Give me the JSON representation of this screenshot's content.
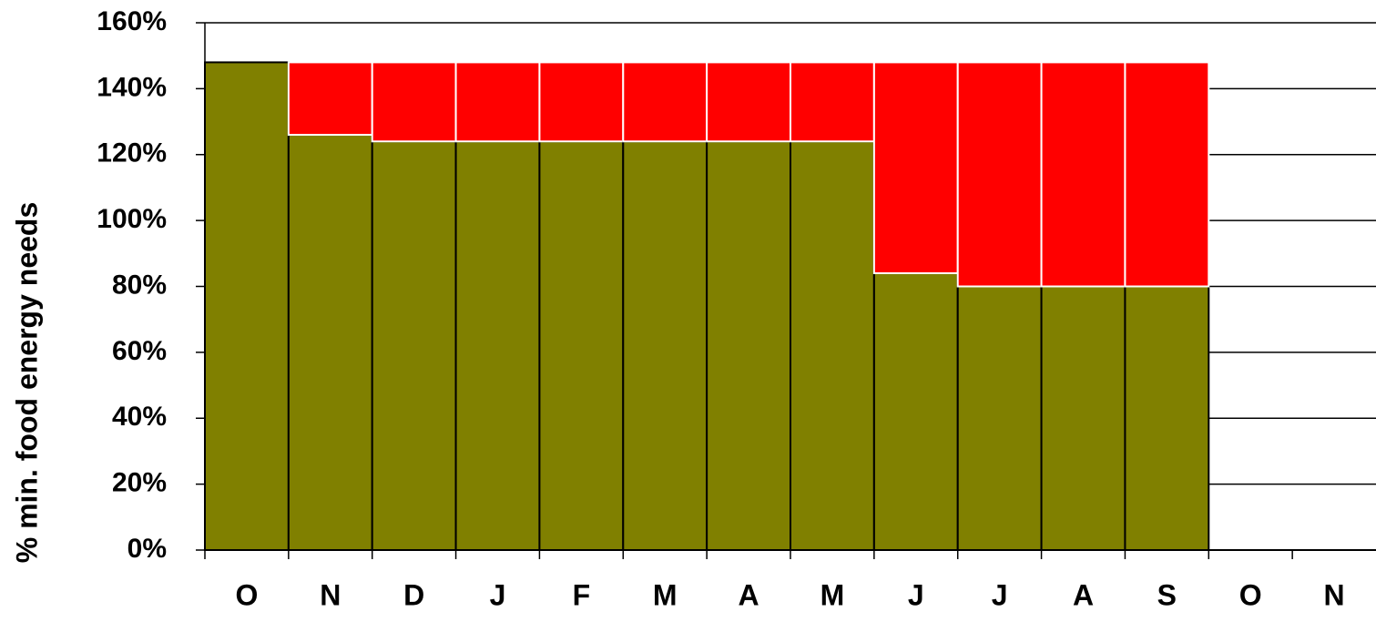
{
  "chart_data": {
    "type": "stacked_bar",
    "y_label": "% min. food energy needs",
    "categories": [
      "O",
      "N",
      "D",
      "J",
      "F",
      "M",
      "A",
      "M",
      "J",
      "J",
      "A",
      "S",
      "O",
      "N"
    ],
    "series": [
      {
        "color": "#808000",
        "values": [
          148,
          126,
          124,
          124,
          124,
          124,
          124,
          124,
          84,
          80,
          80,
          80,
          null,
          null
        ]
      },
      {
        "color": "#ff0000",
        "values": [
          null,
          22,
          24,
          24,
          24,
          24,
          24,
          24,
          64,
          68,
          68,
          68,
          null,
          null
        ]
      }
    ],
    "ylim": [
      0,
      160
    ],
    "yticks": [
      {
        "value": 0,
        "label": "0%"
      },
      {
        "value": 20,
        "label": "20%"
      },
      {
        "value": 40,
        "label": "40%"
      },
      {
        "value": 60,
        "label": "60%"
      },
      {
        "value": 80,
        "label": "80%"
      },
      {
        "value": 100,
        "label": "100%"
      },
      {
        "value": 120,
        "label": "120%"
      },
      {
        "value": 140,
        "label": "140%"
      },
      {
        "value": 160,
        "label": "160%"
      }
    ],
    "grid": true
  }
}
